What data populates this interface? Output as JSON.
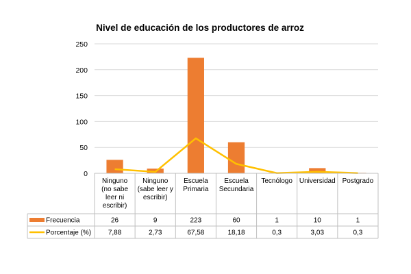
{
  "chart_data": {
    "type": "bar",
    "title": "Nivel de educación de los productores de arroz",
    "categories": [
      [
        "Ninguno",
        "(no sabe",
        "leer ni",
        "escribir)"
      ],
      [
        "Ninguno",
        "(sabe leer y",
        "escribir)"
      ],
      [
        "Escuela",
        "Primaria"
      ],
      [
        "Escuela",
        "Secundaria"
      ],
      [
        "Tecnólogo"
      ],
      [
        "Universidad"
      ],
      [
        "Postgrado"
      ]
    ],
    "ylim": [
      0,
      250
    ],
    "yticks": [
      0,
      50,
      100,
      150,
      200,
      250
    ],
    "grid": true,
    "legend": "data table",
    "series": [
      {
        "name": "Frecuencia",
        "kind": "bar",
        "color": "#ED7D31",
        "values": [
          26,
          9,
          223,
          60,
          1,
          10,
          1
        ],
        "labels": [
          "26",
          "9",
          "223",
          "60",
          "1",
          "10",
          "1"
        ]
      },
      {
        "name": "Porcentaje (%)",
        "kind": "line",
        "color": "#FFC000",
        "values": [
          7.88,
          2.73,
          67.58,
          18.18,
          0.3,
          3.03,
          0.3
        ],
        "labels": [
          "7,88",
          "2,73",
          "67,58",
          "18,18",
          "0,3",
          "3,03",
          "0,3"
        ]
      }
    ]
  }
}
